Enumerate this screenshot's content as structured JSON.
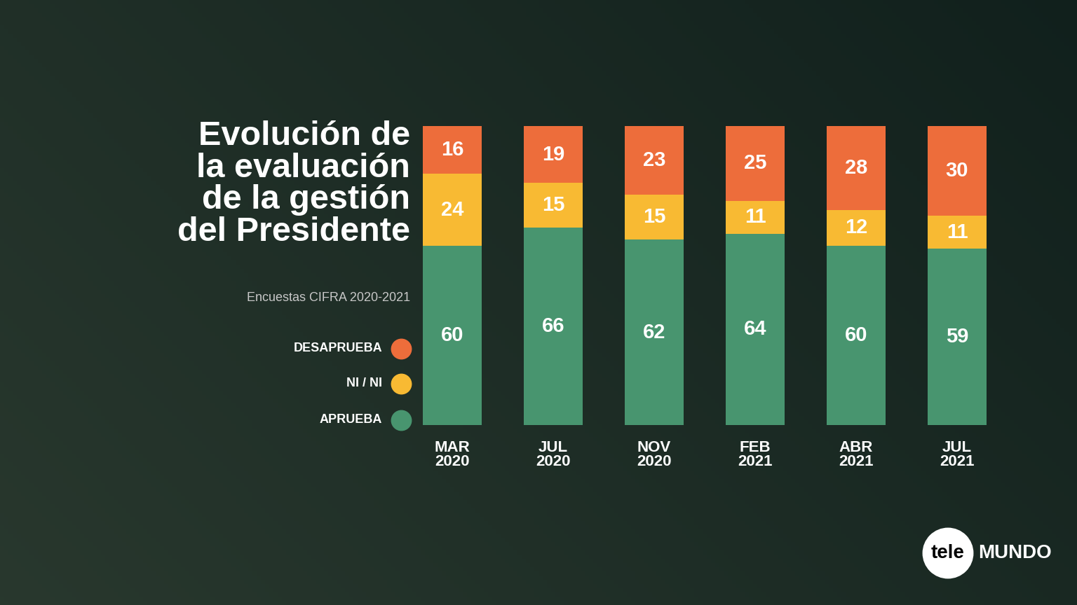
{
  "chart_data": {
    "type": "bar",
    "stacked": true,
    "data_labels": true,
    "tick_labels": "x",
    "title": "Evolución de\nla evaluación\nde la gestión\ndel Presidente",
    "subtitle": "Encuestas CIFRA 2020-2021",
    "categories": [
      "MAR\n2020",
      "JUL\n2020",
      "NOV\n2020",
      "FEB\n2021",
      "ABR\n2021",
      "JUL\n2021"
    ],
    "series": [
      {
        "name": "APRUEBA",
        "color": "#48956f",
        "values": [
          60,
          66,
          62,
          64,
          60,
          59
        ]
      },
      {
        "name": "NI / NI",
        "color": "#f8ba33",
        "values": [
          24,
          15,
          15,
          11,
          12,
          11
        ]
      },
      {
        "name": "DESAPRUEBA",
        "color": "#ed6d3b",
        "values": [
          16,
          19,
          23,
          25,
          28,
          30
        ]
      }
    ],
    "ylim": [
      0,
      100
    ],
    "yticks": [],
    "grid": false
  },
  "branding": {
    "logo": [
      "tele",
      "MUNDO"
    ]
  }
}
